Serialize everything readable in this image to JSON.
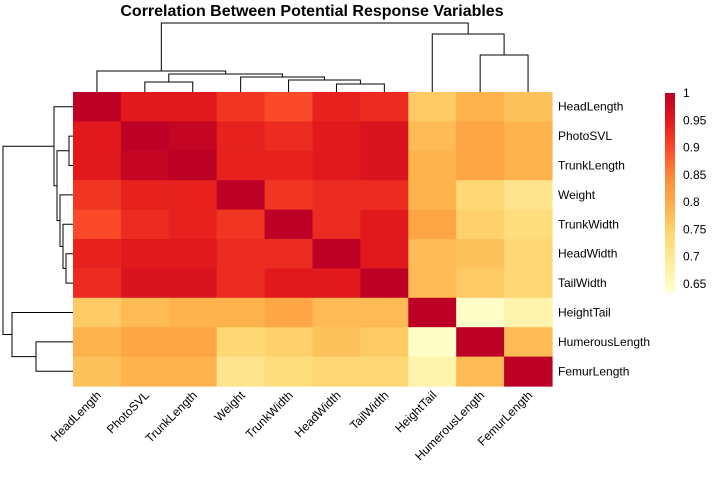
{
  "chart_data": {
    "type": "heatmap",
    "title": "Correlation Between Potential Response Variables",
    "variables": [
      "HeadLength",
      "PhotoSVL",
      "TrunkLength",
      "Weight",
      "TrunkWidth",
      "HeadWidth",
      "TailWidth",
      "HeightTail",
      "HumerousLength",
      "FemurLength"
    ],
    "values": [
      [
        1.0,
        0.95,
        0.95,
        0.92,
        0.9,
        0.94,
        0.93,
        0.76,
        0.79,
        0.77
      ],
      [
        0.95,
        1.0,
        0.99,
        0.94,
        0.93,
        0.95,
        0.96,
        0.78,
        0.81,
        0.79
      ],
      [
        0.95,
        0.99,
        1.0,
        0.94,
        0.94,
        0.95,
        0.96,
        0.79,
        0.81,
        0.79
      ],
      [
        0.92,
        0.94,
        0.94,
        1.0,
        0.92,
        0.93,
        0.93,
        0.79,
        0.74,
        0.71
      ],
      [
        0.9,
        0.93,
        0.94,
        0.92,
        1.0,
        0.93,
        0.95,
        0.81,
        0.75,
        0.73
      ],
      [
        0.94,
        0.95,
        0.95,
        0.93,
        0.93,
        1.0,
        0.95,
        0.78,
        0.77,
        0.74
      ],
      [
        0.93,
        0.96,
        0.96,
        0.93,
        0.95,
        0.95,
        1.0,
        0.78,
        0.76,
        0.74
      ],
      [
        0.76,
        0.78,
        0.79,
        0.79,
        0.81,
        0.78,
        0.78,
        1.0,
        0.64,
        0.67
      ],
      [
        0.79,
        0.81,
        0.81,
        0.74,
        0.75,
        0.77,
        0.76,
        0.64,
        1.0,
        0.78
      ],
      [
        0.77,
        0.79,
        0.79,
        0.71,
        0.73,
        0.74,
        0.74,
        0.67,
        0.78,
        1.0
      ]
    ],
    "legend": {
      "ticks": [
        1,
        0.95,
        0.9,
        0.85,
        0.8,
        0.75,
        0.7,
        0.65
      ],
      "tick_labels": [
        "1",
        "0.95",
        "0.9",
        "0.85",
        "0.8",
        "0.75",
        "0.7",
        "0.65"
      ],
      "range": [
        0.635,
        1.0
      ],
      "placement": "right"
    },
    "color_scale": [
      "#FFFFCC",
      "#FFEDA0",
      "#FED976",
      "#FEB24C",
      "#FD8D3C",
      "#FC4E2A",
      "#E31A1C",
      "#BD0026"
    ],
    "dendrogram": {
      "merge_order": [
        [
          "PhotoSVL",
          "TrunkLength"
        ],
        [
          "HeadWidth",
          "TailWidth"
        ],
        [
          "TrunkWidth",
          "HeadWidth+TailWidth"
        ],
        [
          "Weight",
          "TrunkWidth+HeadWidth+TailWidth"
        ],
        [
          "PhotoSVL+TrunkLength",
          "Weight+TrunkWidth+HeadWidth+TailWidth"
        ],
        [
          "HeadLength",
          "PhotoSVL..TailWidth"
        ],
        [
          "HumerousLength",
          "FemurLength"
        ],
        [
          "HeightTail",
          "HumerousLength+FemurLength"
        ],
        [
          "HeadLength..TailWidth",
          "HeightTail+HumerousLength+FemurLength"
        ]
      ]
    }
  }
}
